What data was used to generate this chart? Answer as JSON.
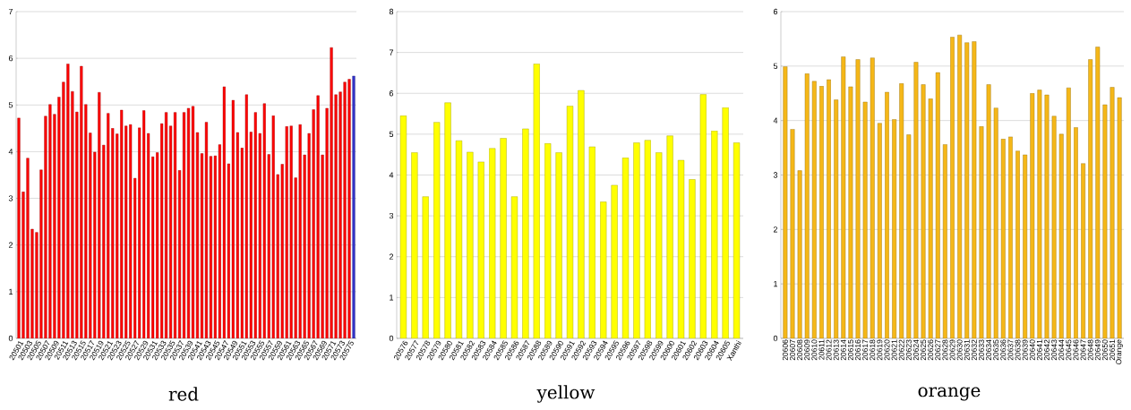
{
  "chart_data": [
    {
      "type": "bar",
      "title": "red",
      "categories": [
        "20501",
        null,
        "20503",
        null,
        "20505",
        null,
        "20507",
        null,
        "20509",
        null,
        "20511",
        null,
        "20513",
        null,
        "20515",
        null,
        "20517",
        null,
        "20519",
        null,
        "20521",
        null,
        "20523",
        null,
        "20525",
        null,
        "20527",
        null,
        "20529",
        null,
        "20531",
        null,
        "20533",
        null,
        "20535",
        null,
        "20537",
        null,
        "20539",
        null,
        "20541",
        null,
        "20543",
        null,
        "20545",
        null,
        "20547",
        null,
        "20549",
        null,
        "20551",
        null,
        "20553",
        null,
        "20555",
        null,
        "20557",
        null,
        "20559",
        null,
        "20561",
        null,
        "20563",
        null,
        "20565",
        null,
        "20567",
        null,
        "20569",
        null,
        "20571",
        null,
        "20573",
        null,
        "20575",
        null
      ],
      "values": [
        4.72,
        3.14,
        3.86,
        2.34,
        2.27,
        3.61,
        4.76,
        5.01,
        4.8,
        5.17,
        5.49,
        5.88,
        5.29,
        4.85,
        5.83,
        5.01,
        4.4,
        3.99,
        5.27,
        4.14,
        4.82,
        4.5,
        4.38,
        4.89,
        4.55,
        4.58,
        3.43,
        4.51,
        4.88,
        4.39,
        3.89,
        3.98,
        4.6,
        4.84,
        4.55,
        4.84,
        3.6,
        4.84,
        4.93,
        4.97,
        4.41,
        3.96,
        4.63,
        3.9,
        3.91,
        4.15,
        5.39,
        3.74,
        5.1,
        4.41,
        4.08,
        5.22,
        4.42,
        4.84,
        4.39,
        5.03,
        3.94,
        4.77,
        3.51,
        3.73,
        4.54,
        4.55,
        3.44,
        4.58,
        3.93,
        4.39,
        4.9,
        5.2,
        3.93,
        4.93,
        6.23,
        5.22,
        5.28,
        5.49,
        5.55,
        5.62
      ],
      "colors": [
        "#ff0000",
        "#ff0000",
        "#ff0000",
        "#ff0000",
        "#ff0000",
        "#ff0000",
        "#ff0000",
        "#ff0000",
        "#ff0000",
        "#ff0000",
        "#ff0000",
        "#ff0000",
        "#ff0000",
        "#ff0000",
        "#ff0000",
        "#ff0000",
        "#ff0000",
        "#ff0000",
        "#ff0000",
        "#ff0000",
        "#ff0000",
        "#ff0000",
        "#ff0000",
        "#ff0000",
        "#ff0000",
        "#ff0000",
        "#ff0000",
        "#ff0000",
        "#ff0000",
        "#ff0000",
        "#ff0000",
        "#ff0000",
        "#ff0000",
        "#ff0000",
        "#ff0000",
        "#ff0000",
        "#ff0000",
        "#ff0000",
        "#ff0000",
        "#ff0000",
        "#ff0000",
        "#ff0000",
        "#ff0000",
        "#ff0000",
        "#ff0000",
        "#ff0000",
        "#ff0000",
        "#ff0000",
        "#ff0000",
        "#ff0000",
        "#ff0000",
        "#ff0000",
        "#ff0000",
        "#ff0000",
        "#ff0000",
        "#ff0000",
        "#ff0000",
        "#ff0000",
        "#ff0000",
        "#ff0000",
        "#ff0000",
        "#ff0000",
        "#ff0000",
        "#ff0000",
        "#ff0000",
        "#ff0000",
        "#ff0000",
        "#ff0000",
        "#ff0000",
        "#ff0000",
        "#ff0000",
        "#ff0000",
        "#ff0000",
        "#ff0000",
        "#ff0000",
        "#3333cc"
      ],
      "ylim": [
        0,
        7
      ],
      "yticks": [
        0,
        1,
        2,
        3,
        4,
        5,
        6,
        7
      ],
      "grid": "y"
    },
    {
      "type": "bar",
      "title": "yellow",
      "categories": [
        "20576",
        "20577",
        "20578",
        "20579",
        "20580",
        "20581",
        "20582",
        "20583",
        "20584",
        "20585",
        "20586",
        "20587",
        "20588",
        "20589",
        "20590",
        "20591",
        "20592",
        "20593",
        "20594",
        "20595",
        "20596",
        "20597",
        "20598",
        "20599",
        "20600",
        "20601",
        "20602",
        "20603",
        "20604",
        "20605",
        "Xanthi"
      ],
      "values": [
        5.45,
        4.55,
        3.47,
        5.29,
        5.77,
        4.84,
        4.56,
        4.32,
        4.65,
        4.9,
        3.47,
        5.13,
        6.72,
        4.77,
        4.55,
        5.69,
        6.07,
        4.69,
        3.34,
        3.75,
        4.42,
        4.79,
        4.85,
        4.55,
        4.96,
        4.36,
        3.89,
        5.97,
        5.08,
        5.65,
        4.79
      ],
      "color": "#ffff00",
      "ylim": [
        0,
        8
      ],
      "yticks": [
        0,
        1,
        2,
        3,
        4,
        5,
        6,
        7,
        8
      ],
      "grid": "y"
    },
    {
      "type": "bar",
      "title": "orange",
      "categories": [
        "20606",
        "20607",
        "20608",
        "20609",
        "20610",
        "20611",
        "20612",
        "20613",
        "20614",
        "20615",
        "20616",
        "20617",
        "20618",
        "20619",
        "20620",
        "20621",
        "20622",
        "20623",
        "20624",
        "20625",
        "20626",
        "20627",
        "20628",
        "20629",
        "20630",
        "20631",
        "20632",
        "20633",
        "20634",
        "20635",
        "20636",
        "20637",
        "20638",
        "20639",
        "20640",
        "20641",
        "20642",
        "20643",
        "20644",
        "20645",
        "20646",
        "20647",
        "20648",
        "20649",
        "20650",
        "20651",
        "Orange"
      ],
      "values": [
        4.99,
        3.84,
        3.08,
        4.86,
        4.72,
        4.63,
        4.75,
        4.38,
        5.17,
        4.62,
        5.12,
        4.34,
        5.15,
        3.95,
        4.52,
        4.02,
        4.68,
        3.74,
        5.07,
        4.66,
        4.4,
        4.88,
        3.56,
        5.53,
        5.57,
        5.43,
        5.45,
        3.89,
        4.66,
        4.23,
        3.66,
        3.7,
        3.44,
        3.37,
        4.5,
        4.56,
        4.47,
        4.08,
        3.75,
        4.6,
        3.87,
        3.21,
        5.12,
        5.35,
        4.29,
        4.61,
        4.42
      ],
      "color": "#f5b718",
      "ylim": [
        0,
        6
      ],
      "yticks": [
        0,
        1,
        2,
        3,
        4,
        5,
        6
      ],
      "grid": "y"
    }
  ]
}
